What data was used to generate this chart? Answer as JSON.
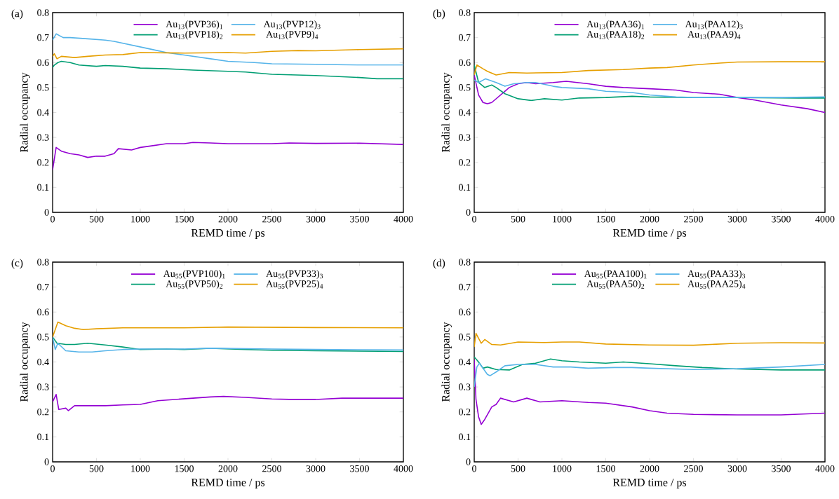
{
  "chart_data": [
    {
      "type": "line",
      "title": "(a)",
      "xlabel": "REMD time / ps",
      "ylabel": "Radial occupancy",
      "xlim": [
        0,
        4000
      ],
      "ylim": [
        0,
        0.8
      ],
      "xticks": [
        0,
        500,
        1000,
        1500,
        2000,
        2500,
        3000,
        3500,
        4000
      ],
      "yticks": [
        0,
        0.1,
        0.2,
        0.3,
        0.4,
        0.5,
        0.6,
        0.7,
        0.8
      ],
      "legend": "top",
      "grid": false,
      "line_style": "solid",
      "series": [
        {
          "name": "Au$_{13}$(PVP36)$_{1}$",
          "color": "#9400d3",
          "x": [
            0,
            40,
            100,
            200,
            300,
            400,
            500,
            600,
            700,
            750,
            900,
            1000,
            1100,
            1300,
            1500,
            1600,
            1800,
            2000,
            2500,
            2700,
            3000,
            3500,
            4000
          ],
          "values": [
            0.17,
            0.26,
            0.245,
            0.235,
            0.23,
            0.22,
            0.225,
            0.225,
            0.235,
            0.255,
            0.25,
            0.26,
            0.265,
            0.275,
            0.275,
            0.28,
            0.278,
            0.275,
            0.275,
            0.278,
            0.276,
            0.277,
            0.272
          ]
        },
        {
          "name": "Au$_{13}$(PVP18)$_{2}$",
          "color": "#009e73",
          "x": [
            0,
            20,
            60,
            100,
            200,
            300,
            500,
            600,
            800,
            1000,
            1300,
            1600,
            2000,
            2200,
            2500,
            3000,
            3500,
            3700,
            4000
          ],
          "values": [
            0.58,
            0.59,
            0.6,
            0.605,
            0.6,
            0.59,
            0.585,
            0.588,
            0.585,
            0.578,
            0.575,
            0.57,
            0.565,
            0.562,
            0.553,
            0.548,
            0.54,
            0.535,
            0.535
          ]
        },
        {
          "name": "Au$_{13}$(PVP12)$_{3}$",
          "color": "#56b4e9",
          "x": [
            0,
            40,
            120,
            200,
            400,
            600,
            700,
            900,
            1100,
            1300,
            1500,
            1800,
            2000,
            2300,
            2500,
            3000,
            3500,
            4000
          ],
          "values": [
            0.69,
            0.715,
            0.7,
            0.7,
            0.695,
            0.69,
            0.685,
            0.67,
            0.655,
            0.64,
            0.63,
            0.615,
            0.605,
            0.6,
            0.595,
            0.593,
            0.59,
            0.59
          ]
        },
        {
          "name": "Au$_{13}$(PVP9)$_{4}$",
          "color": "#e69f00",
          "x": [
            0,
            20,
            50,
            100,
            250,
            400,
            600,
            800,
            1000,
            1500,
            2000,
            2200,
            2500,
            2800,
            3000,
            3500,
            4000
          ],
          "values": [
            0.625,
            0.635,
            0.615,
            0.625,
            0.62,
            0.625,
            0.63,
            0.632,
            0.64,
            0.638,
            0.64,
            0.638,
            0.645,
            0.648,
            0.647,
            0.652,
            0.655
          ]
        }
      ]
    },
    {
      "type": "line",
      "title": "(b)",
      "xlabel": "REMD time / ps",
      "ylabel": "Radial occupancy",
      "xlim": [
        0,
        4000
      ],
      "ylim": [
        0,
        0.8
      ],
      "xticks": [
        0,
        500,
        1000,
        1500,
        2000,
        2500,
        3000,
        3500,
        4000
      ],
      "yticks": [
        0,
        0.1,
        0.2,
        0.3,
        0.4,
        0.5,
        0.6,
        0.7,
        0.8
      ],
      "legend": "top",
      "grid": false,
      "line_style": "solid",
      "series": [
        {
          "name": "Au$_{13}$(PAA36)$_{1}$",
          "color": "#9400d3",
          "x": [
            0,
            50,
            100,
            150,
            200,
            300,
            400,
            500,
            600,
            700,
            900,
            1050,
            1300,
            1500,
            1700,
            2000,
            2300,
            2500,
            2800,
            3000,
            3200,
            3500,
            3800,
            4000
          ],
          "values": [
            0.55,
            0.47,
            0.44,
            0.435,
            0.44,
            0.47,
            0.5,
            0.515,
            0.52,
            0.515,
            0.52,
            0.525,
            0.515,
            0.505,
            0.5,
            0.495,
            0.49,
            0.48,
            0.473,
            0.46,
            0.45,
            0.43,
            0.415,
            0.4
          ]
        },
        {
          "name": "Au$_{13}$(PAA18)$_{2}$",
          "color": "#009e73",
          "x": [
            0,
            50,
            120,
            200,
            250,
            350,
            500,
            650,
            800,
            1000,
            1200,
            1500,
            1800,
            2000,
            2500,
            3000,
            3700,
            4000
          ],
          "values": [
            0.59,
            0.52,
            0.5,
            0.51,
            0.5,
            0.475,
            0.455,
            0.448,
            0.455,
            0.45,
            0.458,
            0.46,
            0.465,
            0.462,
            0.46,
            0.46,
            0.458,
            0.458
          ]
        },
        {
          "name": "Au$_{13}$(PAA12)$_{3}$",
          "color": "#56b4e9",
          "x": [
            0,
            50,
            130,
            250,
            350,
            450,
            600,
            700,
            900,
            1000,
            1300,
            1500,
            1800,
            2000,
            2300,
            2500,
            3000,
            3500,
            4000
          ],
          "values": [
            0.53,
            0.52,
            0.535,
            0.52,
            0.505,
            0.515,
            0.52,
            0.52,
            0.505,
            0.5,
            0.495,
            0.485,
            0.48,
            0.47,
            0.462,
            0.46,
            0.46,
            0.46,
            0.462
          ]
        },
        {
          "name": "Au$_{13}$(PAA9)$_{4}$",
          "color": "#e69f00",
          "x": [
            0,
            30,
            100,
            150,
            250,
            400,
            600,
            1000,
            1300,
            1700,
            2000,
            2200,
            2500,
            2800,
            3000,
            3500,
            4000
          ],
          "values": [
            0.55,
            0.59,
            0.575,
            0.565,
            0.55,
            0.56,
            0.558,
            0.56,
            0.568,
            0.572,
            0.578,
            0.58,
            0.59,
            0.598,
            0.602,
            0.603,
            0.603
          ]
        }
      ]
    },
    {
      "type": "line",
      "title": "(c)",
      "xlabel": "REMD time / ps",
      "ylabel": "Radial occupancy",
      "xlim": [
        0,
        4000
      ],
      "ylim": [
        0,
        0.8
      ],
      "xticks": [
        0,
        500,
        1000,
        1500,
        2000,
        2500,
        3000,
        3500,
        4000
      ],
      "yticks": [
        0,
        0.1,
        0.2,
        0.3,
        0.4,
        0.5,
        0.6,
        0.7,
        0.8
      ],
      "legend": "top",
      "grid": false,
      "line_style": "solid",
      "series": [
        {
          "name": "Au$_{55}$(PVP100)$_{1}$",
          "color": "#9400d3",
          "x": [
            0,
            40,
            70,
            150,
            180,
            250,
            400,
            600,
            800,
            1000,
            1200,
            1400,
            1600,
            1800,
            1950,
            2200,
            2500,
            2700,
            3000,
            3300,
            4000
          ],
          "values": [
            0.24,
            0.27,
            0.21,
            0.215,
            0.205,
            0.225,
            0.225,
            0.225,
            0.228,
            0.23,
            0.245,
            0.25,
            0.255,
            0.26,
            0.262,
            0.258,
            0.252,
            0.25,
            0.25,
            0.255,
            0.255
          ]
        },
        {
          "name": "Au$_{55}$(PVP50)$_{2}$",
          "color": "#009e73",
          "x": [
            0,
            50,
            150,
            250,
            400,
            600,
            800,
            1000,
            1300,
            1500,
            1800,
            2200,
            2500,
            3000,
            4000
          ],
          "values": [
            0.5,
            0.475,
            0.47,
            0.47,
            0.475,
            0.468,
            0.46,
            0.45,
            0.452,
            0.45,
            0.455,
            0.45,
            0.447,
            0.445,
            0.442
          ]
        },
        {
          "name": "Au$_{55}$(PVP33)$_{3}$",
          "color": "#56b4e9",
          "x": [
            0,
            30,
            60,
            150,
            300,
            450,
            600,
            800,
            1000,
            1500,
            1800,
            2500,
            3000,
            4000
          ],
          "values": [
            0.5,
            0.45,
            0.475,
            0.445,
            0.44,
            0.44,
            0.445,
            0.45,
            0.452,
            0.452,
            0.455,
            0.452,
            0.45,
            0.448
          ]
        },
        {
          "name": "Au$_{55}$(PVP25)$_{4}$",
          "color": "#e69f00",
          "x": [
            0,
            60,
            150,
            250,
            350,
            500,
            800,
            1500,
            2000,
            3000,
            4000
          ],
          "values": [
            0.5,
            0.56,
            0.545,
            0.535,
            0.53,
            0.533,
            0.537,
            0.537,
            0.54,
            0.538,
            0.537
          ]
        }
      ]
    },
    {
      "type": "line",
      "title": "(d)",
      "xlabel": "REMD time / ps",
      "ylabel": "Radial occupancy",
      "xlim": [
        0,
        4000
      ],
      "ylim": [
        0,
        0.8
      ],
      "xticks": [
        0,
        500,
        1000,
        1500,
        2000,
        2500,
        3000,
        3500,
        4000
      ],
      "yticks": [
        0,
        0.1,
        0.2,
        0.3,
        0.4,
        0.5,
        0.6,
        0.7,
        0.8
      ],
      "legend": "top",
      "grid": false,
      "line_style": "solid",
      "series": [
        {
          "name": "Au$_{55}$(PAA100)$_{1}$",
          "color": "#9400d3",
          "x": [
            0,
            20,
            50,
            80,
            120,
            200,
            250,
            300,
            400,
            450,
            600,
            750,
            1000,
            1300,
            1500,
            1800,
            2000,
            2200,
            2500,
            3000,
            3500,
            4000
          ],
          "values": [
            0.41,
            0.25,
            0.18,
            0.15,
            0.17,
            0.22,
            0.23,
            0.255,
            0.245,
            0.24,
            0.255,
            0.24,
            0.245,
            0.238,
            0.235,
            0.22,
            0.205,
            0.195,
            0.19,
            0.188,
            0.188,
            0.195
          ]
        },
        {
          "name": "Au$_{55}$(PAA50)$_{2}$",
          "color": "#009e73",
          "x": [
            0,
            50,
            100,
            150,
            250,
            400,
            550,
            700,
            870,
            1000,
            1200,
            1500,
            1700,
            2000,
            2300,
            2600,
            3000,
            3500,
            4000
          ],
          "values": [
            0.42,
            0.4,
            0.375,
            0.38,
            0.37,
            0.368,
            0.39,
            0.395,
            0.412,
            0.405,
            0.4,
            0.395,
            0.4,
            0.393,
            0.385,
            0.378,
            0.372,
            0.368,
            0.368
          ]
        },
        {
          "name": "Au$_{55}$(PAA33)$_{3}$",
          "color": "#56b4e9",
          "x": [
            0,
            30,
            60,
            150,
            180,
            250,
            350,
            500,
            700,
            900,
            1100,
            1300,
            1600,
            1800,
            2000,
            2500,
            3000,
            3500,
            4000
          ],
          "values": [
            0.3,
            0.38,
            0.395,
            0.35,
            0.345,
            0.36,
            0.385,
            0.39,
            0.39,
            0.38,
            0.38,
            0.375,
            0.378,
            0.378,
            0.375,
            0.37,
            0.373,
            0.38,
            0.39
          ]
        },
        {
          "name": "Au$_{55}$(PAA25)$_{4}$",
          "color": "#e69f00",
          "x": [
            0,
            20,
            80,
            120,
            200,
            300,
            500,
            800,
            1000,
            1200,
            1500,
            2000,
            2500,
            3000,
            3500,
            4000
          ],
          "values": [
            0.46,
            0.515,
            0.475,
            0.49,
            0.47,
            0.468,
            0.48,
            0.478,
            0.48,
            0.48,
            0.472,
            0.468,
            0.467,
            0.475,
            0.477,
            0.476
          ]
        }
      ]
    }
  ]
}
